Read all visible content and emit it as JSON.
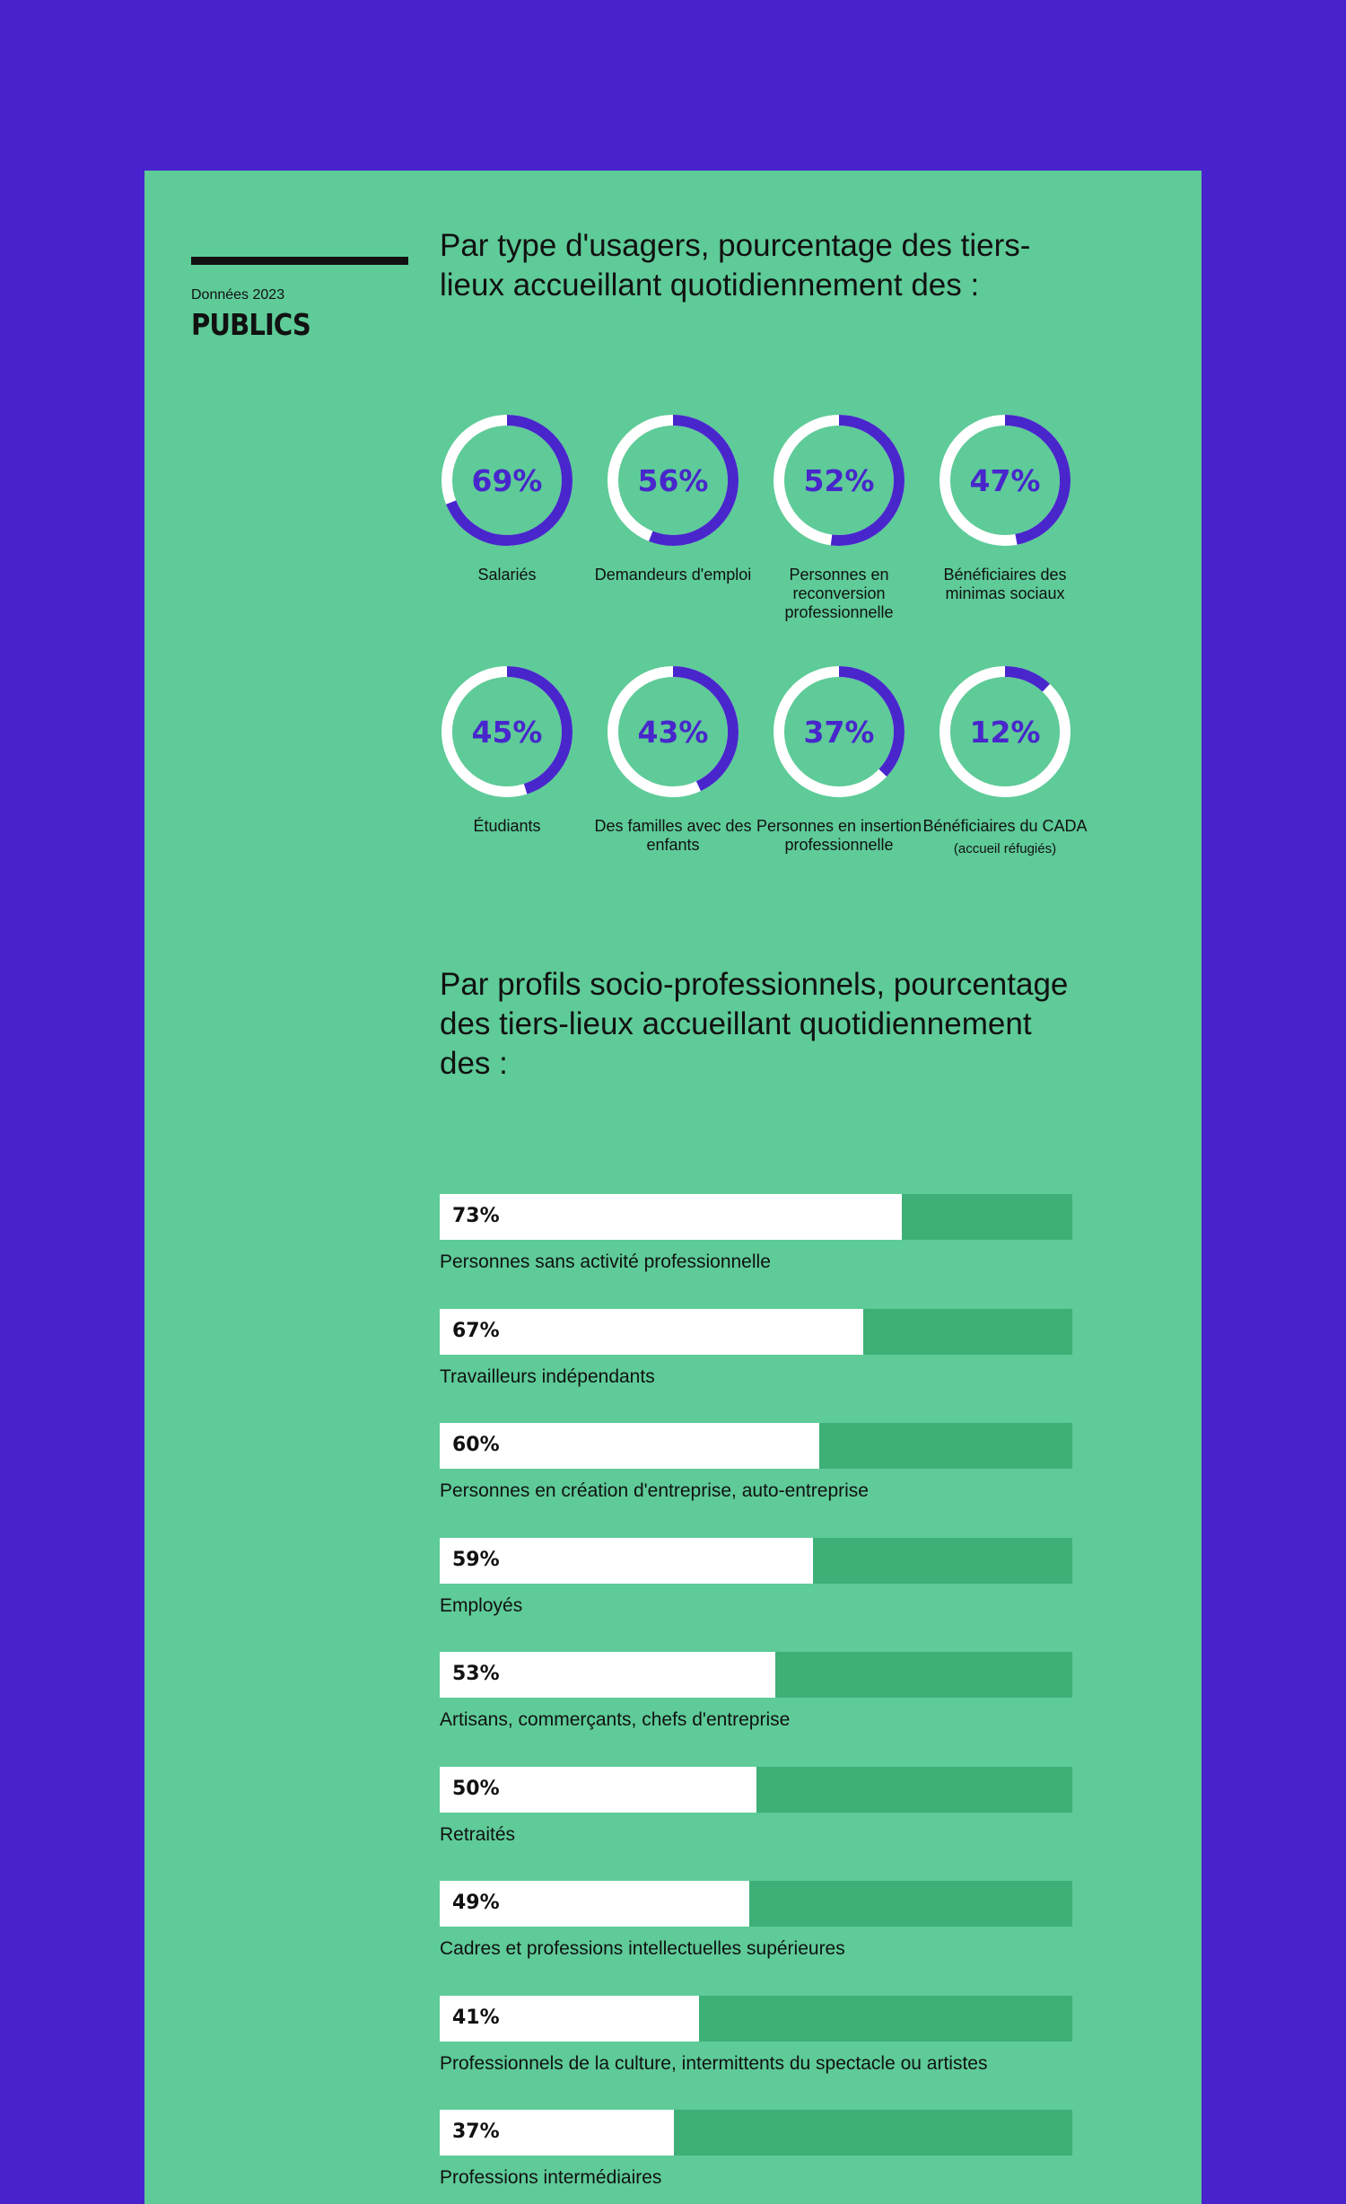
{
  "header": {
    "data_year": "Données 2023",
    "section_name": "PUBLICS"
  },
  "colors": {
    "background": "#4822cc",
    "panel": "#5ecb98",
    "donut_arc": "#4826cc",
    "donut_track": "#ffffff",
    "bar_fill": "#ffffff",
    "bar_track": "#3daf77"
  },
  "donut_section": {
    "heading": "Par type d'usagers, pourcentage des tiers-lieux accueillant quotidiennement des :"
  },
  "bar_section": {
    "heading": "Par profils socio-professionnels, pourcentage des tiers-lieux accueillant quotidiennement des :"
  },
  "chart_data": [
    {
      "type": "donut",
      "unit": "%",
      "items": [
        {
          "label": "Salariés",
          "value": 69,
          "display": "69%"
        },
        {
          "label": "Demandeurs d'emploi",
          "value": 56,
          "display": "56%"
        },
        {
          "label": "Personnes en reconversion professionnelle",
          "value": 52,
          "display": "52%"
        },
        {
          "label": "Bénéficiaires des minimas sociaux",
          "value": 47,
          "display": "47%"
        },
        {
          "label": "Étudiants",
          "value": 45,
          "display": "45%"
        },
        {
          "label": "Des familles avec des enfants",
          "value": 43,
          "display": "43%"
        },
        {
          "label": "Personnes en insertion professionnelle",
          "value": 37,
          "display": "37%"
        },
        {
          "label": "Bénéficiaires du CADA",
          "sublabel": "(accueil réfugiés)",
          "value": 12,
          "display": "12%"
        }
      ]
    },
    {
      "type": "bar",
      "orientation": "horizontal",
      "unit": "%",
      "xlim": [
        0,
        100
      ],
      "categories": [
        "Personnes sans activité professionnelle",
        "Travailleurs indépendants",
        "Personnes en création d'entreprise, auto-entreprise",
        "Employés",
        "Artisans, commerçants, chefs d'entreprise",
        "Retraités",
        "Cadres et professions intellectuelles supérieures",
        "Professionnels de la culture, intermittents du spectacle ou artistes",
        "Professions intermédiaires"
      ],
      "values": [
        73,
        67,
        60,
        59,
        53,
        50,
        49,
        41,
        37
      ],
      "display": [
        "73%",
        "67%",
        "60%",
        "59%",
        "53%",
        "50%",
        "49%",
        "41%",
        "37%"
      ]
    }
  ]
}
